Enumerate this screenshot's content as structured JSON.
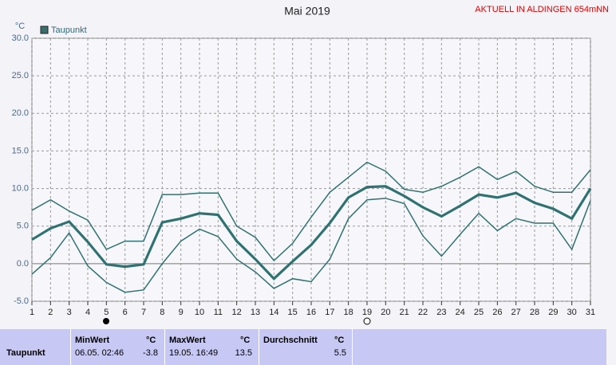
{
  "chart_data": {
    "type": "line",
    "title": "Mai 2019",
    "subtitle": "AKTUELL IN ALDINGEN 654mNN",
    "y_unit": "°C",
    "legend": "Taupunkt",
    "x": [
      1,
      2,
      3,
      4,
      5,
      6,
      7,
      8,
      9,
      10,
      11,
      12,
      13,
      14,
      15,
      16,
      17,
      18,
      19,
      20,
      21,
      22,
      23,
      24,
      25,
      26,
      27,
      28,
      29,
      30,
      31
    ],
    "xlim": [
      1,
      31
    ],
    "xticks": [
      1,
      2,
      3,
      4,
      5,
      6,
      7,
      8,
      9,
      10,
      11,
      12,
      13,
      14,
      15,
      16,
      17,
      18,
      19,
      20,
      21,
      22,
      23,
      24,
      25,
      26,
      27,
      28,
      29,
      30,
      31
    ],
    "ylim": [
      -5,
      30
    ],
    "yticks": [
      {
        "value": -5,
        "label": "-5.0"
      },
      {
        "value": 0,
        "label": "0.0"
      },
      {
        "value": 5,
        "label": "5.0"
      },
      {
        "value": 10,
        "label": "10.0"
      },
      {
        "value": 15,
        "label": "15.0"
      },
      {
        "value": 20,
        "label": "20.0"
      },
      {
        "value": 25,
        "label": "25.0"
      },
      {
        "value": 30,
        "label": "30.0"
      }
    ],
    "grid": true,
    "series": [
      {
        "color": "#2f7272",
        "values": [
          7.1,
          8.5,
          7.0,
          5.8,
          1.9,
          3.0,
          3.0,
          9.2,
          9.2,
          9.4,
          9.4,
          5.0,
          3.5,
          0.4,
          2.7,
          6.2,
          9.5,
          11.5,
          13.5,
          12.3,
          9.9,
          9.5,
          10.3,
          11.5,
          12.9,
          11.2,
          12.3,
          10.3,
          9.5,
          9.5,
          12.5
        ]
      },
      {
        "name": "Taupunkt",
        "color": "#2f7272",
        "values": [
          3.2,
          4.7,
          5.6,
          2.9,
          -0.1,
          -0.4,
          -0.1,
          5.5,
          6.0,
          6.7,
          6.5,
          3.0,
          0.6,
          -2.0,
          0.3,
          2.5,
          5.4,
          8.8,
          10.2,
          10.3,
          9.0,
          7.5,
          6.3,
          7.7,
          9.2,
          8.8,
          9.4,
          8.1,
          7.3,
          6.0,
          10.0
        ]
      },
      {
        "color": "#2f7272",
        "values": [
          -1.4,
          0.8,
          4.1,
          -0.3,
          -2.5,
          -3.8,
          -3.5,
          0.0,
          3.0,
          4.6,
          3.6,
          0.6,
          -1.1,
          -3.3,
          -2.0,
          -2.4,
          0.6,
          6.0,
          8.5,
          8.7,
          8.0,
          3.7,
          1.0,
          3.9,
          6.7,
          4.4,
          6.0,
          5.4,
          5.4,
          1.9,
          8.4
        ]
      }
    ]
  },
  "table": {
    "row_label": "Taupunkt",
    "columns": [
      {
        "header": "MinWert",
        "unit": "°C",
        "time": "06.05.  02:46",
        "value": -3.8
      },
      {
        "header": "MaxWert",
        "unit": "°C",
        "time": "19.05.  16:49",
        "value": 13.5
      },
      {
        "header": "Durchschnitt",
        "unit": "°C",
        "value": 5.5
      }
    ]
  }
}
